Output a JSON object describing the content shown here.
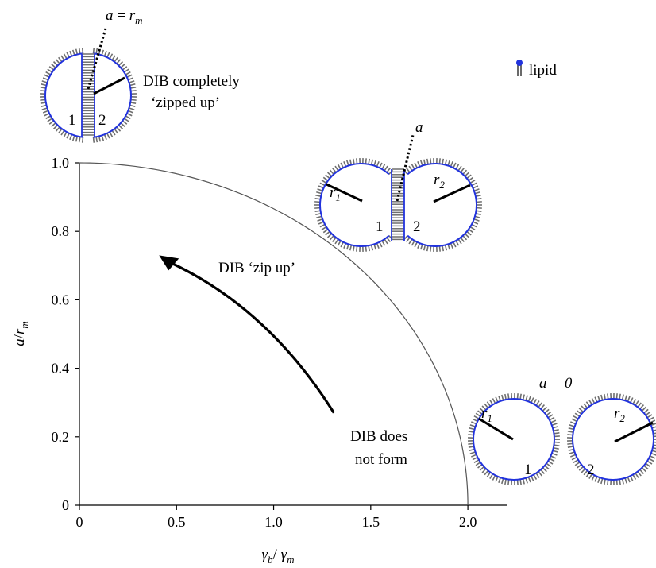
{
  "chart_data": {
    "type": "line",
    "xlabel": {
      "main": "γ",
      "sub1": "b",
      "slash": "/ ",
      "main2": "γ",
      "sub2": "m"
    },
    "ylabel": {
      "main": "a",
      "slash": "/",
      "r": "r",
      "sub": "m"
    },
    "xlim": [
      0,
      2.2
    ],
    "ylim": [
      0,
      1.0
    ],
    "x_ticks": [
      "0",
      "0.5",
      "1.0",
      "1.5",
      "2.0"
    ],
    "x_tick_values": [
      0,
      0.5,
      1.0,
      1.5,
      2.0
    ],
    "y_ticks": [
      "0",
      "0.2",
      "0.4",
      "0.6",
      "0.8",
      "1.0"
    ],
    "y_tick_values": [
      0,
      0.2,
      0.4,
      0.6,
      0.8,
      1.0
    ],
    "grid": false,
    "series": [
      {
        "curve": "a/r_m = sqrt(1 - (γb/γm / 2)^2)",
        "x": [
          0,
          0.25,
          0.5,
          0.75,
          1.0,
          1.25,
          1.5,
          1.75,
          1.9,
          2.0
        ],
        "y": [
          1.0,
          0.992,
          0.968,
          0.927,
          0.866,
          0.781,
          0.661,
          0.484,
          0.312,
          0.0
        ],
        "color": "#555555"
      }
    ],
    "arrow": {
      "from": [
        1.31,
        0.27
      ],
      "to": [
        0.41,
        0.73
      ]
    },
    "annotations": {
      "zip_up": "DIB ‘zip up’",
      "not_form_line1": "DIB does",
      "not_form_line2": "not form",
      "zipped_line1": "DIB completely",
      "zipped_line2": "‘zipped up’",
      "lipid_legend": "lipid",
      "top_label_a": "a",
      "top_label_eq": " = ",
      "top_label_r": "r",
      "top_label_sub": "m",
      "mid_label_a": "a",
      "right_label": "a = 0",
      "r1": "r",
      "r1_sub": "1",
      "r2": "r",
      "r2_sub": "2",
      "num1": "1",
      "num2": "2"
    },
    "colors": {
      "lipid_head": "#2233dd",
      "lipid_tail": "#6e6e6e",
      "axis": "#000000"
    }
  }
}
